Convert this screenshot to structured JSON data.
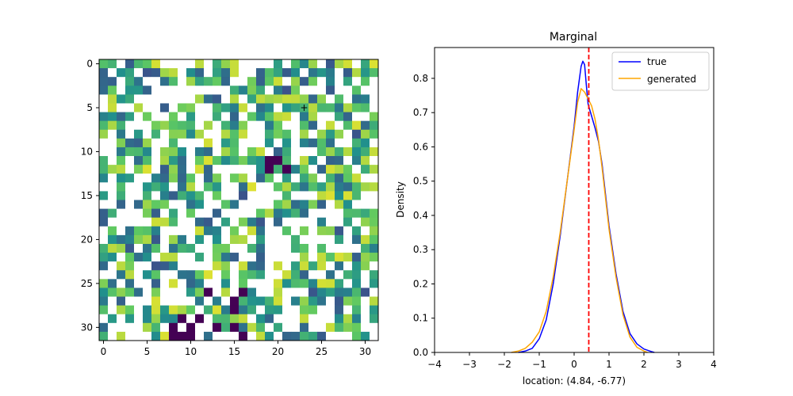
{
  "chart_data": [
    {
      "type": "heatmap",
      "title": "",
      "xlabel": "",
      "ylabel": "",
      "xlim": [
        -0.5,
        31.5
      ],
      "ylim": [
        31.5,
        -0.5
      ],
      "x_ticks": [
        "0",
        "5",
        "10",
        "15",
        "20",
        "25",
        "30"
      ],
      "y_ticks": [
        "0",
        "5",
        "10",
        "15",
        "20",
        "25",
        "30"
      ],
      "colormap": "viridis",
      "colormap_stops": [
        "#440154",
        "#3b528b",
        "#21918c",
        "#5ec962",
        "#fde725"
      ],
      "grid_size": 32,
      "missing_value_color": "#ffffff",
      "seed": 20240531,
      "missing_fraction": 0.42,
      "marker": {
        "symbol": "+",
        "color": "#ff0000",
        "col": 23,
        "row": 5
      }
    },
    {
      "type": "line",
      "title": "Marginal",
      "xlabel": "location: (4.84, -6.77)",
      "ylabel": "Density",
      "xlim": [
        -4,
        4
      ],
      "ylim": [
        0,
        0.89
      ],
      "x_ticks": [
        "−4",
        "−3",
        "−2",
        "−1",
        "0",
        "1",
        "2",
        "3",
        "4"
      ],
      "y_ticks": [
        "0.0",
        "0.1",
        "0.2",
        "0.3",
        "0.4",
        "0.5",
        "0.6",
        "0.7",
        "0.8"
      ],
      "grid": false,
      "legend_position": "top-right",
      "vline": {
        "x": 0.42,
        "color": "#ff0000",
        "style": "dashed"
      },
      "series": [
        {
          "name": "true",
          "color": "#0000ff",
          "points": [
            [
              -1.6,
              0
            ],
            [
              -1.4,
              0.004
            ],
            [
              -1.2,
              0.012
            ],
            [
              -1.0,
              0.04
            ],
            [
              -0.8,
              0.095
            ],
            [
              -0.6,
              0.2
            ],
            [
              -0.4,
              0.34
            ],
            [
              -0.2,
              0.5
            ],
            [
              0.0,
              0.66
            ],
            [
              0.1,
              0.76
            ],
            [
              0.2,
              0.835
            ],
            [
              0.25,
              0.85
            ],
            [
              0.3,
              0.84
            ],
            [
              0.35,
              0.78
            ],
            [
              0.4,
              0.725
            ],
            [
              0.5,
              0.69
            ],
            [
              0.6,
              0.655
            ],
            [
              0.7,
              0.615
            ],
            [
              0.8,
              0.55
            ],
            [
              0.9,
              0.46
            ],
            [
              1.0,
              0.37
            ],
            [
              1.2,
              0.23
            ],
            [
              1.4,
              0.12
            ],
            [
              1.6,
              0.055
            ],
            [
              1.8,
              0.025
            ],
            [
              2.0,
              0.01
            ],
            [
              2.2,
              0.003
            ],
            [
              2.3,
              0
            ]
          ]
        },
        {
          "name": "generated",
          "color": "#ffa500",
          "points": [
            [
              -1.8,
              0
            ],
            [
              -1.6,
              0.004
            ],
            [
              -1.4,
              0.012
            ],
            [
              -1.2,
              0.03
            ],
            [
              -1.0,
              0.06
            ],
            [
              -0.8,
              0.12
            ],
            [
              -0.6,
              0.22
            ],
            [
              -0.4,
              0.35
            ],
            [
              -0.2,
              0.5
            ],
            [
              0.0,
              0.65
            ],
            [
              0.1,
              0.73
            ],
            [
              0.2,
              0.77
            ],
            [
              0.3,
              0.76
            ],
            [
              0.4,
              0.74
            ],
            [
              0.5,
              0.72
            ],
            [
              0.6,
              0.68
            ],
            [
              0.7,
              0.62
            ],
            [
              0.8,
              0.54
            ],
            [
              0.9,
              0.45
            ],
            [
              1.0,
              0.36
            ],
            [
              1.2,
              0.22
            ],
            [
              1.4,
              0.11
            ],
            [
              1.6,
              0.045
            ],
            [
              1.8,
              0.015
            ],
            [
              2.0,
              0.004
            ],
            [
              2.1,
              0
            ]
          ]
        }
      ]
    }
  ]
}
